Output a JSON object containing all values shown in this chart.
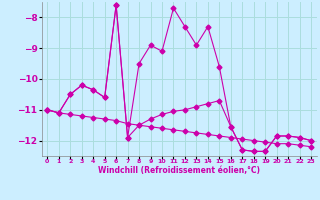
{
  "xlabel": "Windchill (Refroidissement éolien,°C)",
  "background_color": "#cceeff",
  "grid_color": "#aadddd",
  "line_color": "#cc00aa",
  "x": [
    0,
    1,
    2,
    3,
    4,
    5,
    6,
    7,
    8,
    9,
    10,
    11,
    12,
    13,
    14,
    15,
    16,
    17,
    18,
    19,
    20,
    21,
    22,
    23
  ],
  "series": [
    [
      -11.0,
      -11.1,
      -11.15,
      -11.2,
      -11.25,
      -11.3,
      -11.35,
      -11.45,
      -11.5,
      -11.55,
      -11.6,
      -11.65,
      -11.7,
      -11.75,
      -11.8,
      -11.85,
      -11.9,
      -11.95,
      -12.0,
      -12.05,
      -12.1,
      -12.1,
      -12.15,
      -12.2
    ],
    [
      -11.0,
      -11.1,
      -10.5,
      -10.2,
      -10.35,
      -10.6,
      -7.6,
      -11.9,
      -11.5,
      -11.3,
      -11.15,
      -11.05,
      -11.0,
      -10.9,
      -10.8,
      -10.7,
      -11.55,
      -12.3,
      -12.35,
      -12.35,
      -11.85,
      -11.85,
      -11.9,
      -12.0
    ],
    [
      -11.0,
      -11.1,
      -10.5,
      -10.2,
      -10.35,
      -10.6,
      -7.6,
      -11.9,
      -9.5,
      -8.9,
      -9.1,
      -7.7,
      -8.3,
      -8.9,
      -8.3,
      -9.6,
      -11.55,
      -12.3,
      -12.35,
      -12.35,
      -11.85,
      -11.85,
      -11.9,
      -12.0
    ]
  ],
  "ylim": [
    -12.5,
    -7.5
  ],
  "yticks": [
    -12,
    -11,
    -10,
    -9,
    -8
  ],
  "xlim": [
    -0.5,
    23.5
  ],
  "marker": "D",
  "marker_size": 2.5,
  "linewidth": 0.8
}
